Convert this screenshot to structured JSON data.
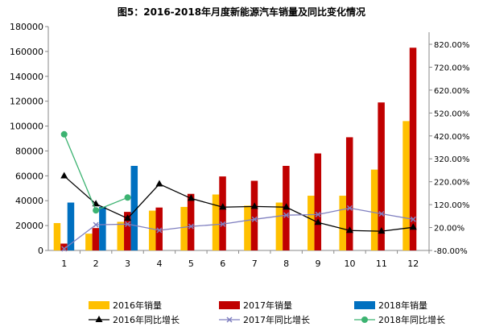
{
  "chart_data": {
    "type": "bar+line",
    "title": "图5：2016-2018年月度新能源汽车销量及同比变化情况",
    "categories": [
      "1",
      "2",
      "3",
      "4",
      "5",
      "6",
      "7",
      "8",
      "9",
      "10",
      "11",
      "12"
    ],
    "y_left": {
      "range": [
        0,
        180000
      ],
      "ticks": [
        "0",
        "20000",
        "40000",
        "60000",
        "80000",
        "100000",
        "120000",
        "140000",
        "160000",
        "180000"
      ]
    },
    "y_right": {
      "range": [
        -80,
        900
      ],
      "ticks": [
        "-80.00%",
        "20.00%",
        "120.00%",
        "220.00%",
        "320.00%",
        "420.00%",
        "520.00%",
        "620.00%",
        "720.00%",
        "820.00%"
      ]
    },
    "bar_series": [
      {
        "name": "2016年销量",
        "color": "#FFC000",
        "values": [
          22000,
          13500,
          23000,
          32000,
          35000,
          45000,
          36000,
          38500,
          44000,
          44000,
          65000,
          104000
        ]
      },
      {
        "name": "2017年销量",
        "color": "#C00000",
        "values": [
          5500,
          18000,
          31000,
          34500,
          45500,
          59500,
          56000,
          68000,
          78000,
          91000,
          119000,
          163000
        ]
      },
      {
        "name": "2018年销量",
        "color": "#0070C0",
        "values": [
          38500,
          35000,
          68000,
          null,
          null,
          null,
          null,
          null,
          null,
          null,
          null,
          null
        ]
      }
    ],
    "line_series": [
      {
        "name": "2016年同比增长",
        "color": "#000000",
        "marker": "triangle",
        "values": [
          245,
          123,
          60,
          210,
          147,
          109,
          112,
          109,
          42,
          7,
          4,
          21
        ]
      },
      {
        "name": "2017年同比增长",
        "color": "#8080C0",
        "marker": "x",
        "values": [
          -73,
          32,
          35,
          8,
          25,
          35,
          56,
          74,
          77,
          105,
          80,
          56
        ]
      },
      {
        "name": "2018年同比增长",
        "color": "#3CB371",
        "marker": "circle",
        "values": [
          427,
          95,
          151,
          null,
          null,
          null,
          null,
          null,
          null,
          null,
          null,
          null
        ]
      }
    ],
    "legend": "bottom",
    "grid": false
  }
}
